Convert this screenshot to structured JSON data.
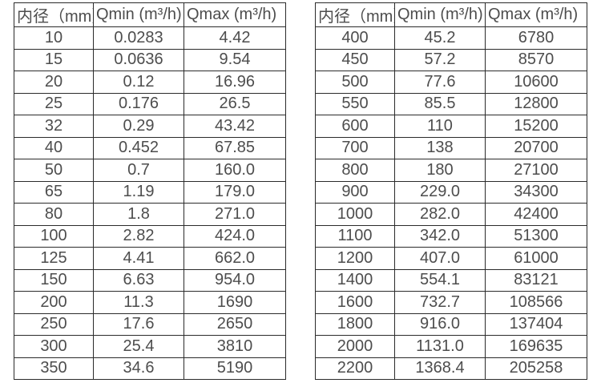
{
  "colors": {
    "background": "#ffffff",
    "border": "#2b2b2b",
    "text": "#4d4d4d"
  },
  "tables": [
    {
      "headers": [
        "内径（mm）",
        "Qmin (m³/h)",
        "Qmax (m³/h)"
      ],
      "rows": [
        [
          "10",
          "0.0283",
          "4.42"
        ],
        [
          "15",
          "0.0636",
          "9.54"
        ],
        [
          "20",
          "0.12",
          "16.96"
        ],
        [
          "25",
          "0.176",
          "26.5"
        ],
        [
          "32",
          "0.29",
          "43.42"
        ],
        [
          "40",
          "0.452",
          "67.85"
        ],
        [
          "50",
          "0.7",
          "160.0"
        ],
        [
          "65",
          "1.19",
          "179.0"
        ],
        [
          "80",
          "1.8",
          "271.0"
        ],
        [
          "100",
          "2.82",
          "424.0"
        ],
        [
          "125",
          "4.41",
          "662.0"
        ],
        [
          "150",
          "6.63",
          "954.0"
        ],
        [
          "200",
          "11.3",
          "1690"
        ],
        [
          "250",
          "17.6",
          "2650"
        ],
        [
          "300",
          "25.4",
          "3810"
        ],
        [
          "350",
          "34.6",
          "5190"
        ]
      ]
    },
    {
      "headers": [
        "内径（mm）",
        "Qmin (m³/h)",
        "Qmax (m³/h)"
      ],
      "rows": [
        [
          "400",
          "45.2",
          "6780"
        ],
        [
          "450",
          "57.2",
          "8570"
        ],
        [
          "500",
          "77.6",
          "10600"
        ],
        [
          "550",
          "85.5",
          "12800"
        ],
        [
          "600",
          "110",
          "15200"
        ],
        [
          "700",
          "138",
          "20700"
        ],
        [
          "800",
          "180",
          "27100"
        ],
        [
          "900",
          "229.0",
          "34300"
        ],
        [
          "1000",
          "282.0",
          "42400"
        ],
        [
          "1100",
          "342.0",
          "51300"
        ],
        [
          "1200",
          "407.0",
          "61000"
        ],
        [
          "1400",
          "554.1",
          "83121"
        ],
        [
          "1600",
          "732.7",
          "108566"
        ],
        [
          "1800",
          "916.0",
          "137404"
        ],
        [
          "2000",
          "1131.0",
          "169635"
        ],
        [
          "2200",
          "1368.4",
          "205258"
        ]
      ]
    }
  ]
}
